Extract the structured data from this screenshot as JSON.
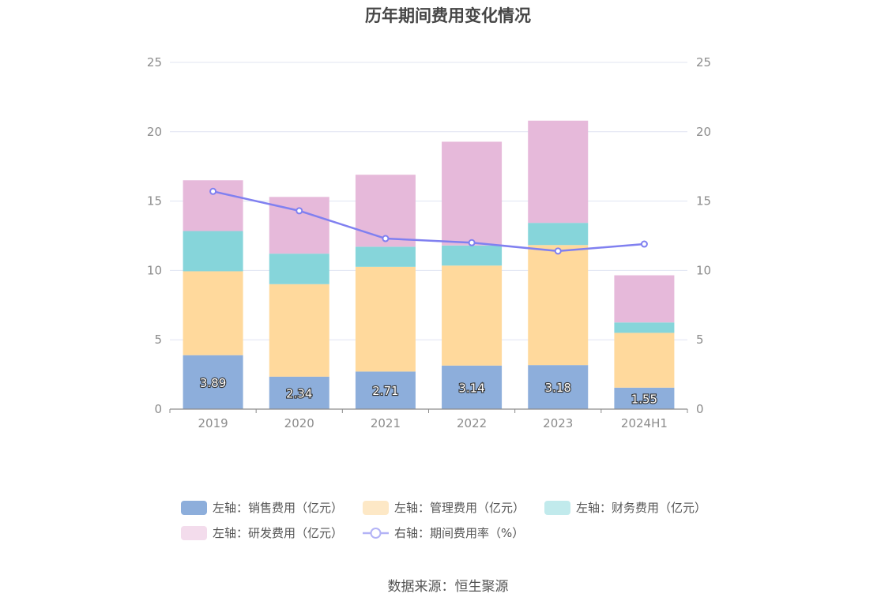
{
  "title": "历年期间费用变化情况",
  "source": "数据来源：恒生聚源",
  "chart_data": {
    "type": "bar",
    "stacked": true,
    "categories": [
      "2019",
      "2020",
      "2021",
      "2022",
      "2023",
      "2024H1"
    ],
    "y_left": {
      "ylim": [
        0,
        25
      ],
      "ticks": [
        "0",
        "5",
        "10",
        "15",
        "20",
        "25"
      ]
    },
    "y_right": {
      "ylim": [
        0,
        25
      ],
      "ticks": [
        "0",
        "5",
        "10",
        "15",
        "20",
        "25"
      ]
    },
    "grid": true,
    "legend_position": "bottom",
    "series": [
      {
        "name": "左轴：销售费用（亿元）",
        "axis": "left",
        "type": "bar",
        "color": "#8daedb",
        "legend_color": "#8daedb",
        "values": [
          3.89,
          2.34,
          2.71,
          3.14,
          3.18,
          1.55
        ],
        "labels": [
          "3.89",
          "2.34",
          "2.71",
          "3.14",
          "3.18",
          "1.55"
        ]
      },
      {
        "name": "左轴：管理费用（亿元）",
        "axis": "left",
        "type": "bar",
        "color": "#ffd99c",
        "legend_color": "#fde8c6",
        "values": [
          6.05,
          6.67,
          7.55,
          7.21,
          8.65,
          3.95
        ]
      },
      {
        "name": "左轴：财务费用（亿元）",
        "axis": "left",
        "type": "bar",
        "color": "#86d5da",
        "legend_color": "#c1eaec",
        "values": [
          2.9,
          2.2,
          1.45,
          1.45,
          1.6,
          0.75
        ]
      },
      {
        "name": "左轴：研发费用（亿元）",
        "axis": "left",
        "type": "bar",
        "color": "#e6b9da",
        "legend_color": "#f3dcec",
        "values": [
          3.66,
          4.09,
          5.19,
          7.48,
          7.37,
          3.4
        ]
      },
      {
        "name": "右轴：期间费用率（%）",
        "axis": "right",
        "type": "line",
        "color": "#8080f0",
        "legend_color": "#b3b3f6",
        "values": [
          15.7,
          14.3,
          12.3,
          12.0,
          11.4,
          11.9
        ]
      }
    ]
  }
}
